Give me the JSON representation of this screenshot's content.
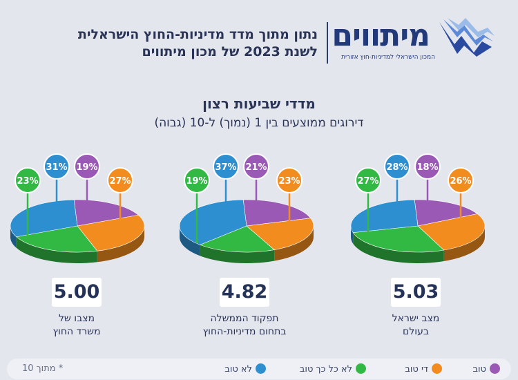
{
  "header": {
    "logo_name": "מיתווים",
    "logo_tagline": "המכון הישראלי למדיניות-חוץ אזורית",
    "title_line1": "נתון מתוך מדד מדיניות-החוץ הישראלית",
    "title_line2": "לשנת 2023 של מכון מיתווים"
  },
  "section": {
    "title": "מדדי שביעות רצון",
    "subtitle": "דירוגים ממוצעים בין 1 (נמוך) ל-10 (גבוה)"
  },
  "colors": {
    "good": "#9b59b6",
    "fair": "#f28c1e",
    "not_so_good": "#32b944",
    "not_good": "#2e8fd0",
    "accent": "#233a7a"
  },
  "legend": {
    "items": [
      {
        "label": "טוב",
        "color": "#9b59b6"
      },
      {
        "label": "די טוב",
        "color": "#f28c1e"
      },
      {
        "label": "לא כל כך טוב",
        "color": "#32b944"
      },
      {
        "label": "לא טוב",
        "color": "#2e8fd0"
      }
    ],
    "note": "* מתוך 10"
  },
  "chart_data": [
    {
      "type": "pie",
      "caption_line1": "מצב ישראל",
      "caption_line2": "בעולם",
      "score": "5.03",
      "categories": [
        "טוב",
        "די טוב",
        "לא כל כך טוב",
        "לא טוב"
      ],
      "values": [
        18,
        26,
        27,
        28
      ],
      "labels": [
        "18%",
        "26%",
        "27%",
        "28%"
      ]
    },
    {
      "type": "pie",
      "caption_line1": "תפקוד הממשלה",
      "caption_line2": "בתחום מדיניות-החוץ",
      "score": "4.82",
      "categories": [
        "טוב",
        "די טוב",
        "לא כל כך טוב",
        "לא טוב"
      ],
      "values": [
        21,
        23,
        19,
        37
      ],
      "labels": [
        "21%",
        "23%",
        "19%",
        "37%"
      ]
    },
    {
      "type": "pie",
      "caption_line1": "מצבו של",
      "caption_line2": "משרד החוץ",
      "score": "5.00",
      "categories": [
        "טוב",
        "די טוב",
        "לא כל כך טוב",
        "לא טוב"
      ],
      "values": [
        19,
        27,
        23,
        31
      ],
      "labels": [
        "19%",
        "27%",
        "23%",
        "31%"
      ]
    }
  ]
}
